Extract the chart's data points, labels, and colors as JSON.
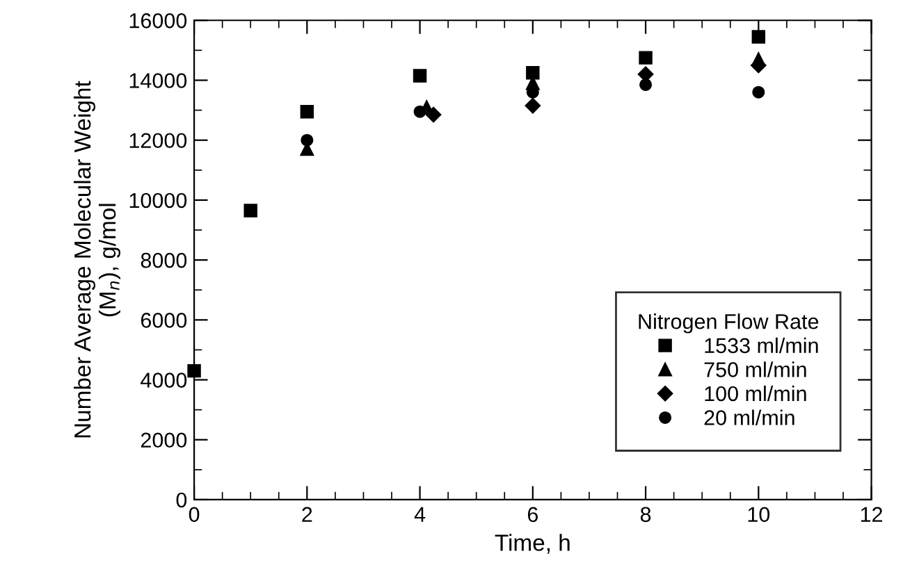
{
  "chart_data": {
    "type": "scatter",
    "xlabel": "Time, h",
    "ylabel": "Number Average Molecular Weight\n(M$_{n}$), g/mol",
    "legend_title": "Nitrogen Flow Rate",
    "legend": "bottom right",
    "grid": false,
    "xlim": [
      0,
      12
    ],
    "xticks": [
      0,
      2,
      4,
      6,
      8,
      10,
      12
    ],
    "ylim": [
      0,
      16000
    ],
    "yticks": [
      0,
      2000,
      4000,
      6000,
      8000,
      10000,
      12000,
      14000,
      16000
    ],
    "series": [
      {
        "name": "1533 ml/min",
        "color": "#000000",
        "marker": "square",
        "x": [
          0,
          1,
          2,
          4,
          6,
          8,
          10
        ],
        "values": [
          4300,
          9650,
          12950,
          14150,
          14250,
          14750,
          15450
        ]
      },
      {
        "name": "750 ml/min",
        "color": "#000000",
        "marker": "triangle",
        "x": [
          2,
          4.12,
          6,
          10
        ],
        "values": [
          11700,
          13100,
          13900,
          14700
        ]
      },
      {
        "name": "100 ml/min",
        "color": "#000000",
        "marker": "diamond",
        "x": [
          4.24,
          6,
          8,
          10
        ],
        "values": [
          12850,
          13150,
          14200,
          14500
        ]
      },
      {
        "name": "20 ml/min",
        "color": "#000000",
        "marker": "circle",
        "x": [
          2,
          4,
          6,
          8,
          10
        ],
        "values": [
          12000,
          12950,
          13600,
          13850,
          13600
        ]
      }
    ]
  }
}
